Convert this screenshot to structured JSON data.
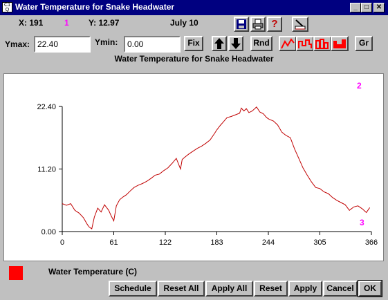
{
  "window": {
    "title": "Water Temperature for Snake Headwater",
    "sys_icon_text": "C1 Q"
  },
  "readout": {
    "x_label": "X: 191",
    "series_index": "1",
    "y_label": "Y: 12.97",
    "date": "July 10"
  },
  "toolbar": {
    "ymax_label": "Ymax:",
    "ymax_value": "22.40",
    "ymin_label": "Ymin:",
    "ymin_value": "0.00",
    "fix_label": "Fix",
    "rnd_label": "Rnd",
    "gr_label": "Gr"
  },
  "chart_title": "Water Temperature for Snake Headwater",
  "markers": {
    "top_right": "2",
    "bottom_right": "3"
  },
  "legend": {
    "label": "Water Temperature (C)",
    "color": "#ff0000"
  },
  "buttons": {
    "schedule": "Schedule",
    "reset_all": "Reset All",
    "apply_all": "Apply All",
    "reset": "Reset",
    "apply": "Apply",
    "cancel": "Cancel",
    "ok": "OK"
  },
  "icons": [
    "save-icon",
    "print-icon",
    "help-icon",
    "pencil-eraser-icon",
    "arrow-up-icon",
    "arrow-down-icon",
    "line-chart-icon",
    "step-chart-icon",
    "bar-chart-icon",
    "area-chart-icon"
  ],
  "colors": {
    "titlebar": "#000080",
    "series": "#c00000",
    "marker_text": "#ff00ff",
    "face": "#c0c0c0"
  },
  "chart_data": {
    "type": "line",
    "title": "Water Temperature for Snake Headwater",
    "xlabel": "",
    "ylabel": "",
    "xlim": [
      0,
      366
    ],
    "ylim": [
      0,
      22.4
    ],
    "xticks": [
      "0",
      "61",
      "122",
      "183",
      "244",
      "305",
      "366"
    ],
    "yticks": [
      "0.00",
      "11.20",
      "22.40"
    ],
    "series": [
      {
        "name": "Water Temperature (C)",
        "x": [
          0,
          5,
          10,
          15,
          20,
          25,
          30,
          32,
          35,
          38,
          42,
          46,
          50,
          55,
          58,
          61,
          64,
          68,
          72,
          76,
          80,
          85,
          90,
          95,
          100,
          105,
          110,
          115,
          120,
          125,
          130,
          135,
          140,
          142,
          145,
          150,
          155,
          160,
          165,
          170,
          175,
          180,
          183,
          187,
          190,
          195,
          200,
          205,
          210,
          212,
          215,
          218,
          221,
          225,
          230,
          234,
          238,
          242,
          245,
          250,
          255,
          260,
          265,
          270,
          275,
          280,
          285,
          290,
          295,
          300,
          305,
          310,
          315,
          320,
          325,
          330,
          335,
          340,
          345,
          350,
          355,
          360,
          364
        ],
        "y": [
          5.0,
          4.7,
          5.0,
          3.8,
          3.3,
          2.5,
          1.2,
          0.8,
          0.5,
          2.6,
          4.2,
          3.5,
          4.8,
          3.8,
          2.8,
          1.9,
          4.6,
          5.7,
          6.2,
          6.6,
          7.2,
          7.9,
          8.3,
          8.6,
          9.0,
          9.5,
          10.1,
          10.3,
          10.9,
          11.4,
          12.2,
          13.1,
          11.2,
          12.9,
          13.3,
          13.9,
          14.4,
          14.9,
          15.3,
          15.8,
          16.4,
          17.5,
          18.2,
          19.0,
          19.5,
          20.4,
          20.6,
          20.9,
          21.2,
          22.1,
          21.6,
          22.0,
          21.3,
          21.6,
          22.3,
          21.4,
          21.1,
          20.4,
          20.1,
          19.8,
          19.1,
          17.8,
          17.2,
          16.8,
          14.8,
          13.1,
          11.4,
          10.1,
          8.9,
          7.9,
          7.7,
          7.1,
          6.8,
          6.1,
          5.6,
          5.2,
          4.8,
          3.8,
          4.4,
          4.6,
          4.1,
          3.4,
          4.3
        ]
      }
    ]
  }
}
